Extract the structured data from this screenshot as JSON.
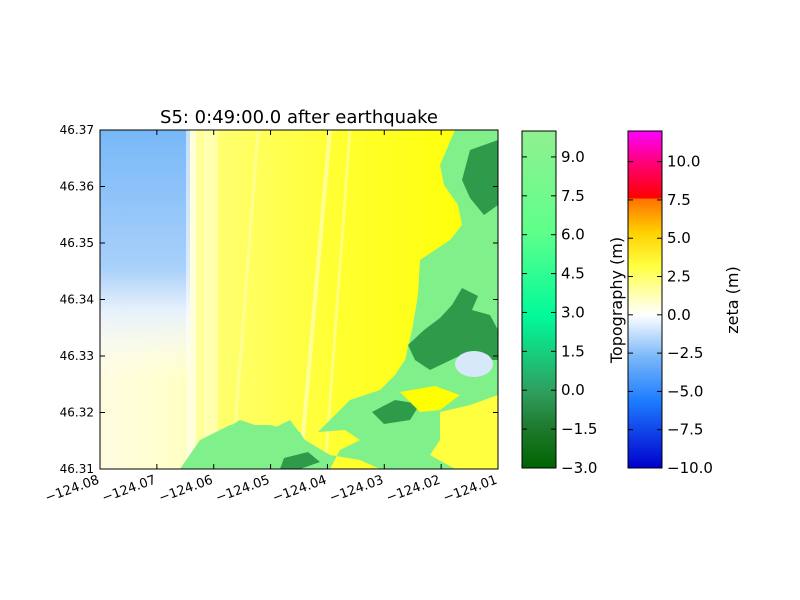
{
  "chart_data": {
    "type": "heatmap",
    "title": "S5: 0:49:00.0 after earthquake",
    "xlim": [
      -124.08,
      -124.01
    ],
    "ylim": [
      46.31,
      46.37
    ],
    "x_ticks": [
      -124.08,
      -124.07,
      -124.06,
      -124.05,
      -124.04,
      -124.03,
      -124.02,
      -124.01
    ],
    "x_tick_labels": [
      "−124.08",
      "−124.07",
      "−124.06",
      "−124.05",
      "−124.04",
      "−124.03",
      "−124.02",
      "−124.01"
    ],
    "y_ticks": [
      46.31,
      46.32,
      46.33,
      46.34,
      46.35,
      46.36,
      46.37
    ],
    "y_tick_labels": [
      "46.31",
      "46.32",
      "46.33",
      "46.34",
      "46.35",
      "46.36",
      "46.37"
    ],
    "colorbars": [
      {
        "label": "Topography (m)",
        "range": [
          -3.0,
          10.0
        ],
        "ticks": [
          -3.0,
          -1.5,
          0.0,
          1.5,
          3.0,
          4.5,
          6.0,
          7.5,
          9.0
        ],
        "tick_labels": [
          "−3.0",
          "−1.5",
          "0.0",
          "1.5",
          "3.0",
          "4.5",
          "6.0",
          "7.5",
          "9.0"
        ],
        "colors": [
          "#006400",
          "#2e8b57",
          "#00fa9a",
          "#7fff7f",
          "#90ee90"
        ]
      },
      {
        "label": "zeta (m)",
        "range": [
          -10.0,
          12.0
        ],
        "ticks": [
          -10.0,
          -7.5,
          -5.0,
          -2.5,
          0.0,
          2.5,
          5.0,
          7.5,
          10.0
        ],
        "tick_labels": [
          "−10.0",
          "−7.5",
          "−5.0",
          "−2.5",
          "0.0",
          "2.5",
          "5.0",
          "7.5",
          "10.0"
        ],
        "colors": [
          "#0000cd",
          "#1e90ff",
          "#87cefa",
          "#ffffff",
          "#ffff00",
          "#ffa500",
          "#ff0000",
          "#ff00ff"
        ]
      }
    ]
  }
}
